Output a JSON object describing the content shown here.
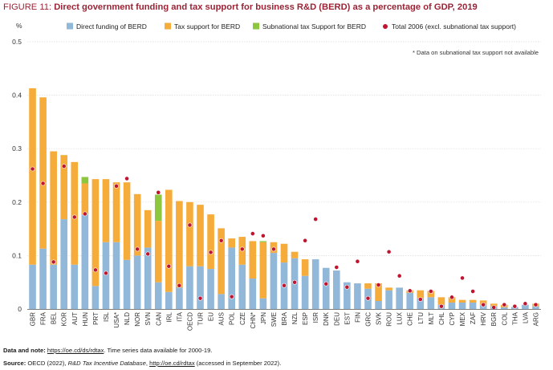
{
  "figure": {
    "label": "FIGURE 11:",
    "title": "Direct government funding and tax support for business R&D (BERD) as a percentage of GDP, 2019"
  },
  "chart_data": {
    "type": "bar",
    "stacked": true,
    "ylabel": "%",
    "ylim": [
      0,
      0.5
    ],
    "yticks": [
      "0",
      "0.1",
      "0.2",
      "0.3",
      "0.4",
      "0.5"
    ],
    "grid": true,
    "legend_position": "top",
    "note": "* Data on subnational tax support not available",
    "categories": [
      "GBR",
      "FRA",
      "BEL",
      "KOR",
      "AUT",
      "HUN",
      "PRT",
      "ISL",
      "USA*",
      "NLD",
      "NOR",
      "SVN",
      "CAN",
      "IRL",
      "ITA",
      "OECD",
      "TUR",
      "EU",
      "AUS",
      "POL",
      "CZE",
      "CHN*",
      "JPN",
      "SWE",
      "BRA",
      "NZL",
      "ESP",
      "ISR",
      "DNK",
      "DEU",
      "EST",
      "FIN",
      "GRC",
      "SVK",
      "ROU",
      "LUX",
      "CHE",
      "LTU",
      "MLT",
      "CHL",
      "CYP",
      "MEX",
      "ZAF",
      "HRV",
      "BGR",
      "COL",
      "THA",
      "LVA",
      "ARG"
    ],
    "series": [
      {
        "name": "Direct funding of BERD",
        "color": "#92b8d9",
        "values": [
          0.083,
          0.113,
          0.083,
          0.168,
          0.083,
          0.177,
          0.043,
          0.125,
          0.125,
          0.092,
          0.1,
          0.115,
          0.05,
          0.032,
          0.04,
          0.08,
          0.08,
          0.075,
          0.028,
          0.115,
          0.083,
          0.057,
          0.02,
          0.105,
          0.087,
          0.095,
          0.062,
          0.093,
          0.077,
          0.072,
          0.05,
          0.048,
          0.038,
          0.015,
          0.035,
          0.04,
          0.03,
          0.02,
          0.022,
          0.008,
          0.012,
          0.012,
          0.012,
          0.008,
          0.005,
          0.003,
          0.004,
          0.008,
          0.005
        ]
      },
      {
        "name": "Tax support for BERD",
        "color": "#f6ac3b",
        "values": [
          0.33,
          0.283,
          0.212,
          0.12,
          0.192,
          0.058,
          0.2,
          0.118,
          0.112,
          0.145,
          0.115,
          0.07,
          0.115,
          0.191,
          0.162,
          0.12,
          0.115,
          0.102,
          0.123,
          0.017,
          0.052,
          0.07,
          0.105,
          0.02,
          0.035,
          0.012,
          0.031,
          0.0,
          0.0,
          0.0,
          0.0,
          0.0,
          0.01,
          0.033,
          0.005,
          0.0,
          0.005,
          0.015,
          0.012,
          0.014,
          0.01,
          0.005,
          0.005,
          0.008,
          0.005,
          0.005,
          0.0,
          0.0,
          0.005
        ]
      },
      {
        "name": "Subnational tax Support for BERD",
        "color": "#8dc63f",
        "values": [
          0,
          0,
          0,
          0,
          0,
          0.012,
          0,
          0,
          0,
          0,
          0,
          0,
          0.049,
          0,
          0,
          0,
          0,
          0,
          0,
          0,
          0,
          0,
          0.002,
          0,
          0,
          0,
          0,
          0,
          0,
          0,
          0,
          0,
          0,
          0,
          0,
          0,
          0,
          0,
          0,
          0,
          0,
          0,
          0,
          0,
          0,
          0,
          0,
          0,
          0
        ]
      },
      {
        "name": "Total 2006 (excl. subnational tax support)",
        "color": "#c0152f",
        "kind": "marker",
        "values": [
          0.262,
          0.235,
          0.088,
          0.267,
          0.172,
          0.178,
          0.073,
          0.067,
          0.23,
          0.244,
          0.112,
          0.103,
          0.218,
          0.08,
          0.044,
          0.157,
          0.02,
          0.106,
          0.128,
          0.023,
          0.112,
          0.141,
          0.137,
          0.112,
          0.044,
          0.05,
          0.128,
          0.168,
          0.047,
          0.078,
          0.041,
          0.089,
          0.02,
          0.045,
          0.107,
          0.062,
          0.034,
          0.018,
          0.033,
          0.005,
          0.022,
          0.058,
          0.033,
          0.008,
          0.003,
          0.008,
          0.005,
          0.01,
          0.008
        ]
      }
    ]
  },
  "footer": {
    "data_note_label": "Data and note:",
    "data_note_link": "https://oe.cd/ds/rdtax",
    "data_note_text": ". Time series data available for 2000-19.",
    "source_label": "Source:",
    "source_text": " OECD (2022), ",
    "source_italic": "R&D Tax Incentive Database",
    "source_sep": ", ",
    "source_link": "http://oe.cd/rdtax",
    "source_end": " (accessed in September 2022)."
  }
}
